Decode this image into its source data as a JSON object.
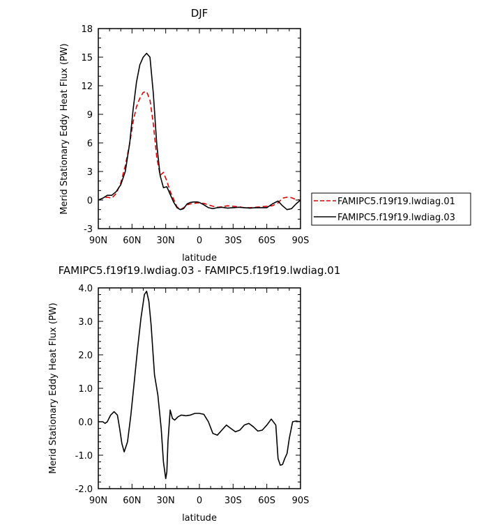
{
  "chart_data": [
    {
      "type": "line",
      "title": "DJF",
      "xlabel": "latitude",
      "ylabel": "Merid Stationary Eddy Heat Flux (PW)",
      "xlim": [
        90,
        -90
      ],
      "ylim": [
        -3,
        18
      ],
      "xticks": [
        90,
        60,
        30,
        0,
        -30,
        -60,
        -90
      ],
      "xtick_labels": [
        "90N",
        "60N",
        "30N",
        "0",
        "30S",
        "60S",
        "90S"
      ],
      "yticks": [
        -3,
        0,
        3,
        6,
        9,
        12,
        15,
        18
      ],
      "ytick_labels": [
        "-3",
        "0",
        "3",
        "6",
        "9",
        "12",
        "15",
        "18"
      ],
      "grid": false,
      "legend_position": "right",
      "series": [
        {
          "name": "FAMIPC5.f19f19.lwdiag.01",
          "color": "#e00000",
          "dash": "dashed",
          "x": [
            90,
            86,
            82,
            78,
            74,
            70,
            66,
            62,
            59,
            56,
            53,
            50,
            47,
            44,
            41,
            38,
            35,
            32,
            29,
            26,
            23,
            20,
            17,
            14,
            11,
            8,
            5,
            2,
            0,
            -4,
            -8,
            -12,
            -16,
            -20,
            -25,
            -30,
            -35,
            -40,
            -45,
            -50,
            -55,
            -60,
            -65,
            -70,
            -74,
            -78,
            -82,
            -86,
            -90
          ],
          "y": [
            0,
            0.2,
            0.3,
            0.2,
            0.7,
            1.8,
            3.6,
            6.0,
            8.2,
            9.8,
            10.7,
            11.3,
            11.4,
            10.5,
            8.0,
            4.5,
            2.6,
            2.9,
            2.0,
            0.9,
            0.1,
            -0.7,
            -1.0,
            -0.8,
            -0.5,
            -0.4,
            -0.35,
            -0.3,
            -0.3,
            -0.35,
            -0.5,
            -0.65,
            -0.75,
            -0.7,
            -0.6,
            -0.65,
            -0.7,
            -0.8,
            -0.8,
            -0.75,
            -0.7,
            -0.65,
            -0.6,
            -0.3,
            0.2,
            0.3,
            0.25,
            0.05,
            0
          ]
        },
        {
          "name": "FAMIPC5.f19f19.lwdiag.03",
          "color": "#000000",
          "dash": "solid",
          "x": [
            90,
            86,
            82,
            78,
            74,
            70,
            66,
            62,
            59,
            56,
            53,
            50,
            47,
            44,
            41,
            38,
            35,
            32,
            29,
            26,
            23,
            20,
            17,
            14,
            11,
            8,
            5,
            2,
            0,
            -4,
            -8,
            -12,
            -16,
            -20,
            -25,
            -30,
            -35,
            -40,
            -45,
            -50,
            -55,
            -60,
            -65,
            -70,
            -74,
            -78,
            -82,
            -86,
            -90
          ],
          "y": [
            0,
            0.2,
            0.5,
            0.5,
            0.9,
            1.6,
            3.0,
            6.0,
            9.5,
            12.4,
            14.2,
            15.0,
            15.4,
            15.0,
            11.2,
            5.9,
            2.6,
            1.3,
            1.4,
            0.6,
            -0.2,
            -0.8,
            -1.0,
            -0.9,
            -0.4,
            -0.25,
            -0.2,
            -0.2,
            -0.25,
            -0.5,
            -0.8,
            -0.9,
            -0.8,
            -0.75,
            -0.85,
            -0.8,
            -0.75,
            -0.8,
            -0.85,
            -0.8,
            -0.8,
            -0.8,
            -0.4,
            -0.1,
            -0.6,
            -1.0,
            -0.9,
            -0.4,
            0
          ]
        }
      ]
    },
    {
      "type": "line",
      "title": "FAMIPC5.f19f19.lwdiag.03 - FAMIPC5.f19f19.lwdiag.01",
      "xlabel": "latitude",
      "ylabel": "Merid Stationary Eddy Heat Flux (PW)",
      "xlim": [
        90,
        -90
      ],
      "ylim": [
        -2,
        4
      ],
      "xticks": [
        90,
        60,
        30,
        0,
        -30,
        -60,
        -90
      ],
      "xtick_labels": [
        "90N",
        "60N",
        "30N",
        "0",
        "30S",
        "60S",
        "90S"
      ],
      "yticks": [
        -2,
        -1,
        0,
        1,
        2,
        3,
        4
      ],
      "ytick_labels": [
        "-2.0",
        "-1.0",
        "0.0",
        "1.0",
        "2.0",
        "3.0",
        "4.0"
      ],
      "grid": false,
      "series": [
        {
          "color": "#000000",
          "dash": "solid",
          "x": [
            90,
            86,
            84,
            82,
            79,
            76,
            73,
            71,
            69,
            67,
            64,
            61,
            58,
            55,
            52,
            49,
            47,
            45,
            43,
            40,
            37,
            34,
            32,
            30,
            29,
            28,
            26,
            24,
            22,
            19,
            16,
            12,
            8,
            4,
            0,
            -4,
            -8,
            -12,
            -16,
            -20,
            -24,
            -28,
            -32,
            -36,
            -40,
            -44,
            -48,
            -52,
            -56,
            -60,
            -64,
            -68,
            -70,
            -72,
            -74,
            -76,
            -78,
            -80,
            -83,
            -86,
            -90
          ],
          "y": [
            0,
            0,
            -0.05,
            0.0,
            0.2,
            0.3,
            0.2,
            -0.2,
            -0.65,
            -0.9,
            -0.6,
            0.2,
            1.2,
            2.2,
            3.1,
            3.8,
            3.9,
            3.6,
            2.9,
            1.4,
            0.8,
            -0.2,
            -1.2,
            -1.7,
            -1.5,
            -0.6,
            0.35,
            0.1,
            0.05,
            0.15,
            0.2,
            0.18,
            0.2,
            0.25,
            0.25,
            0.22,
            0.0,
            -0.35,
            -0.4,
            -0.25,
            -0.1,
            -0.2,
            -0.3,
            -0.25,
            -0.1,
            -0.05,
            -0.15,
            -0.28,
            -0.25,
            -0.1,
            0.08,
            -0.1,
            -1.1,
            -1.3,
            -1.28,
            -1.1,
            -0.95,
            -0.5,
            0.0,
            0.02,
            0.0
          ]
        }
      ]
    }
  ]
}
